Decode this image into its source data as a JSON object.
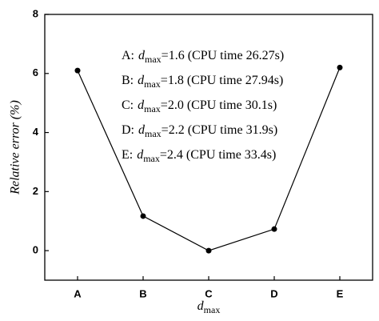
{
  "chart_data": {
    "type": "line",
    "categories": [
      "A",
      "B",
      "C",
      "D",
      "E"
    ],
    "values": [
      6.1,
      1.17,
      0.0,
      0.73,
      6.2
    ],
    "color": "#000000",
    "ylim": [
      -1,
      8
    ],
    "yticks": [
      0,
      2,
      4,
      6,
      8
    ],
    "y_label": "Relative error (%)",
    "x_label": {
      "symbol": "d",
      "subscript": "max"
    },
    "annotations": [
      {
        "label": "A:",
        "symbol": "d",
        "subscript": "max",
        "text": "=1.6 (CPU time 26.27s)"
      },
      {
        "label": "B:",
        "symbol": "d",
        "subscript": "max",
        "text": "=1.8 (CPU time 27.94s)"
      },
      {
        "label": "C:",
        "symbol": "d",
        "subscript": "max",
        "text": "=2.0 (CPU time 30.1s)"
      },
      {
        "label": "D:",
        "symbol": "d",
        "subscript": "max",
        "text": "=2.2 (CPU time 31.9s)"
      },
      {
        "label": "E:",
        "symbol": "d",
        "subscript": "max",
        "text": "=2.4 (CPU time 33.4s)"
      }
    ]
  }
}
